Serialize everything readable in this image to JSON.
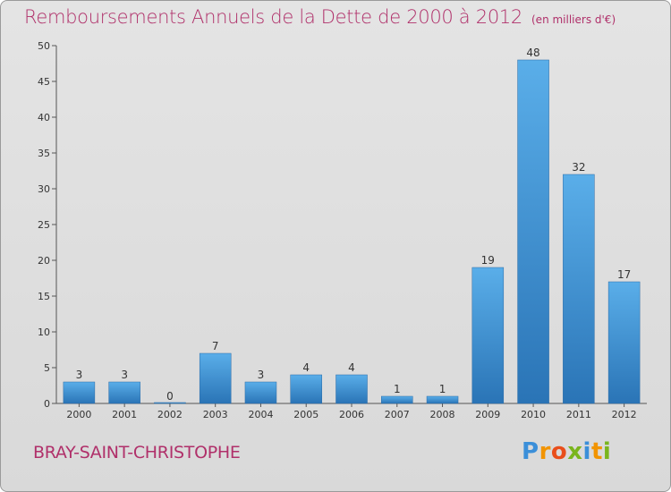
{
  "title": "Remboursements Annuels de la Dette de 2000 à 2012",
  "unit": "(en milliers d'€)",
  "city": "BRAY-SAINT-CHRISTOPHE",
  "logo": {
    "letters": [
      "P",
      "r",
      "o",
      "x",
      "i",
      "t",
      "i"
    ]
  },
  "colors": {
    "bar_light": "#5aaee9",
    "bar_dark": "#2a74b6",
    "title": "#b0306a"
  },
  "chart_data": {
    "type": "bar",
    "title": "Remboursements Annuels de la Dette de 2000 à 2012",
    "categories": [
      "2000",
      "2001",
      "2002",
      "2003",
      "2004",
      "2005",
      "2006",
      "2007",
      "2008",
      "2009",
      "2010",
      "2011",
      "2012"
    ],
    "values": [
      3,
      3,
      0,
      7,
      3,
      4,
      4,
      1,
      1,
      19,
      48,
      32,
      17
    ],
    "ylim": [
      0,
      50
    ],
    "yticks": [
      0,
      5,
      10,
      15,
      20,
      25,
      30,
      35,
      40,
      45,
      50
    ],
    "grid": false,
    "xlabel": "",
    "ylabel": ""
  }
}
